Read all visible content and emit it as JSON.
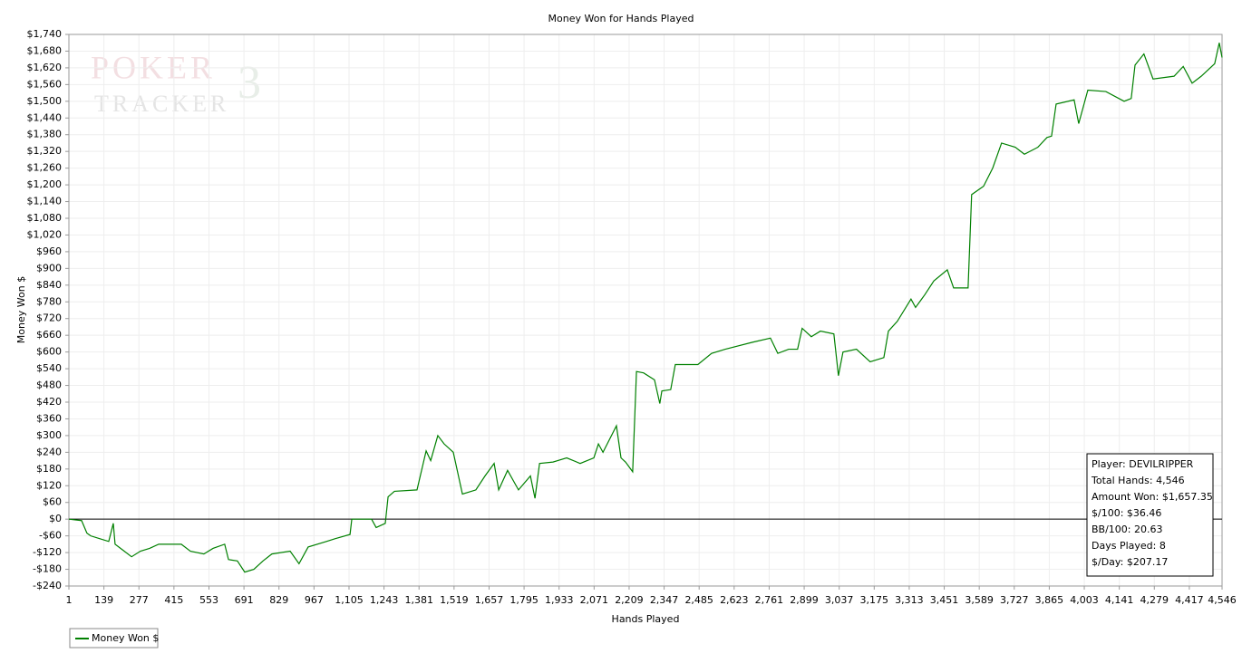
{
  "chart_data": {
    "type": "line",
    "title": "Money Won for Hands Played",
    "x_label": "Hands Played",
    "y_label": "Money Won $",
    "watermark": [
      "POKER",
      "TRACKER",
      "3"
    ],
    "grid": true,
    "legend": "bottom-left",
    "xlim": [
      1,
      4546
    ],
    "ylim": [
      -240,
      1740
    ],
    "xticks": [
      1,
      139,
      277,
      415,
      553,
      691,
      829,
      967,
      {
        "value": 1105,
        "label": "1,105"
      },
      {
        "value": 1243,
        "label": "1,243"
      },
      {
        "value": 1381,
        "label": "1,381"
      },
      {
        "value": 1519,
        "label": "1,519"
      },
      {
        "value": 1657,
        "label": "1,657"
      },
      {
        "value": 1795,
        "label": "1,795"
      },
      {
        "value": 1933,
        "label": "1,933"
      },
      {
        "value": 2071,
        "label": "2,071"
      },
      {
        "value": 2209,
        "label": "2,209"
      },
      {
        "value": 2347,
        "label": "2,347"
      },
      {
        "value": 2485,
        "label": "2,485"
      },
      {
        "value": 2623,
        "label": "2,623"
      },
      {
        "value": 2761,
        "label": "2,761"
      },
      {
        "value": 2899,
        "label": "2,899"
      },
      {
        "value": 3037,
        "label": "3,037"
      },
      {
        "value": 3175,
        "label": "3,175"
      },
      {
        "value": 3313,
        "label": "3,313"
      },
      {
        "value": 3451,
        "label": "3,451"
      },
      {
        "value": 3589,
        "label": "3,589"
      },
      {
        "value": 3727,
        "label": "3,727"
      },
      {
        "value": 3865,
        "label": "3,865"
      },
      {
        "value": 4003,
        "label": "4,003"
      },
      {
        "value": 4141,
        "label": "4,141"
      },
      {
        "value": 4279,
        "label": "4,279"
      },
      {
        "value": 4417,
        "label": "4,417"
      },
      {
        "value": 4546,
        "label": "4,546"
      }
    ],
    "yticks": [
      {
        "value": -240,
        "label": "-$240"
      },
      {
        "value": -180,
        "label": "-$180"
      },
      {
        "value": -120,
        "label": "-$120"
      },
      {
        "value": -60,
        "label": "-$60"
      },
      {
        "value": 0,
        "label": "$0"
      },
      {
        "value": 60,
        "label": "$60"
      },
      {
        "value": 120,
        "label": "$120"
      },
      {
        "value": 180,
        "label": "$180"
      },
      {
        "value": 240,
        "label": "$240"
      },
      {
        "value": 300,
        "label": "$300"
      },
      {
        "value": 360,
        "label": "$360"
      },
      {
        "value": 420,
        "label": "$420"
      },
      {
        "value": 480,
        "label": "$480"
      },
      {
        "value": 540,
        "label": "$540"
      },
      {
        "value": 600,
        "label": "$600"
      },
      {
        "value": 660,
        "label": "$660"
      },
      {
        "value": 720,
        "label": "$720"
      },
      {
        "value": 780,
        "label": "$780"
      },
      {
        "value": 840,
        "label": "$840"
      },
      {
        "value": 900,
        "label": "$900"
      },
      {
        "value": 960,
        "label": "$960"
      },
      {
        "value": 1020,
        "label": "$1,020"
      },
      {
        "value": 1080,
        "label": "$1,080"
      },
      {
        "value": 1140,
        "label": "$1,140"
      },
      {
        "value": 1200,
        "label": "$1,200"
      },
      {
        "value": 1260,
        "label": "$1,260"
      },
      {
        "value": 1320,
        "label": "$1,320"
      },
      {
        "value": 1380,
        "label": "$1,380"
      },
      {
        "value": 1440,
        "label": "$1,440"
      },
      {
        "value": 1500,
        "label": "$1,500"
      },
      {
        "value": 1560,
        "label": "$1,560"
      },
      {
        "value": 1620,
        "label": "$1,620"
      },
      {
        "value": 1680,
        "label": "$1,680"
      },
      {
        "value": 1740,
        "label": "$1,740"
      }
    ],
    "x": [
      1,
      51,
      72,
      87,
      122,
      158,
      176,
      183,
      212,
      248,
      283,
      319,
      355,
      444,
      480,
      533,
      569,
      615,
      630,
      665,
      694,
      730,
      766,
      801,
      873,
      908,
      944,
      1016,
      1051,
      1109,
      1116,
      1159,
      1194,
      1212,
      1248,
      1259,
      1284,
      1373,
      1391,
      1409,
      1427,
      1455,
      1480,
      1516,
      1552,
      1605,
      1641,
      1677,
      1695,
      1730,
      1773,
      1820,
      1838,
      1856,
      1909,
      1963,
      2016,
      2070,
      2088,
      2106,
      2159,
      2177,
      2195,
      2223,
      2238,
      2266,
      2309,
      2330,
      2338,
      2373,
      2391,
      2480,
      2534,
      2588,
      2695,
      2766,
      2795,
      2838,
      2873,
      2891,
      2927,
      2963,
      3016,
      3034,
      3052,
      3105,
      3159,
      3213,
      3231,
      3266,
      3320,
      3338,
      3374,
      3410,
      3463,
      3488,
      3545,
      3559,
      3606,
      3642,
      3677,
      3731,
      3767,
      3820,
      3856,
      3874,
      3892,
      3963,
      3981,
      4017,
      4088,
      4160,
      4188,
      4203,
      4238,
      4274,
      4357,
      4393,
      4428,
      4464,
      4517,
      4535,
      4546
    ],
    "series": [
      {
        "name": "Money Won $",
        "color": "#008000",
        "values": [
          0,
          -5,
          -50,
          -60,
          -70,
          -80,
          -15,
          -90,
          -110,
          -135,
          -115,
          -105,
          -90,
          -90,
          -115,
          -125,
          -105,
          -90,
          -145,
          -150,
          -190,
          -180,
          -150,
          -125,
          -115,
          -160,
          -100,
          -80,
          -70,
          -55,
          0,
          0,
          0,
          -30,
          -15,
          80,
          100,
          105,
          175,
          245,
          210,
          300,
          270,
          240,
          90,
          105,
          155,
          200,
          105,
          175,
          105,
          155,
          75,
          200,
          205,
          220,
          200,
          220,
          270,
          240,
          335,
          220,
          205,
          170,
          530,
          525,
          500,
          415,
          460,
          465,
          555,
          555,
          595,
          610,
          635,
          650,
          595,
          610,
          610,
          685,
          655,
          675,
          665,
          515,
          600,
          610,
          565,
          580,
          675,
          710,
          790,
          760,
          805,
          855,
          895,
          830,
          830,
          1165,
          1195,
          1260,
          1350,
          1335,
          1310,
          1335,
          1370,
          1375,
          1490,
          1505,
          1420,
          1540,
          1535,
          1500,
          1510,
          1630,
          1670,
          1580,
          1590,
          1625,
          1565,
          1590,
          1635,
          1710,
          1657
        ]
      }
    ],
    "info_box": [
      "Player: DEVILRIPPER",
      "Total Hands: 4,546",
      "Amount Won: $1,657.35",
      "$/100: $36.46",
      "BB/100: 20.63",
      "Days Played: 8",
      "$/Day: $207.17"
    ]
  }
}
